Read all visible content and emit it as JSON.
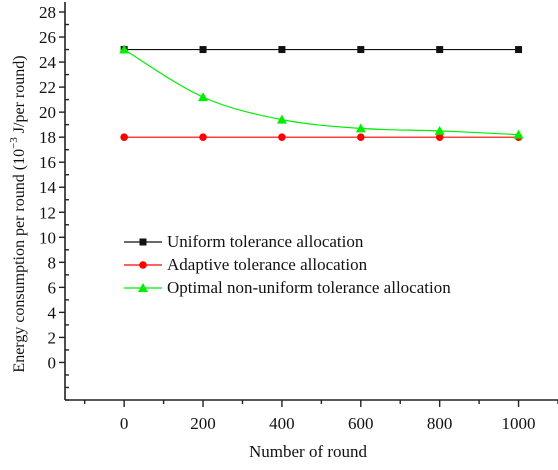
{
  "chart_data": {
    "type": "line",
    "xlabel": "Number of round",
    "ylabel": "Energy consumption per round (10",
    "ylabel_sup": "−3",
    "ylabel_tail": " J/per round)",
    "x": [
      0,
      200,
      400,
      600,
      800,
      1000
    ],
    "xlim": [
      -150,
      1100
    ],
    "ylim": [
      -3,
      28.8
    ],
    "x_ticks": [
      0,
      200,
      400,
      600,
      800,
      1000
    ],
    "y_ticks": [
      0,
      2,
      4,
      6,
      8,
      10,
      12,
      14,
      16,
      18,
      20,
      22,
      24,
      26,
      28
    ],
    "grid": false,
    "legend_position": "left-center",
    "series": [
      {
        "name": "Uniform tolerance allocation",
        "values": [
          25.0,
          25.0,
          25.0,
          25.0,
          25.0,
          25.0
        ],
        "color": "#111111",
        "marker": "square"
      },
      {
        "name": "Adaptive tolerance allocation",
        "values": [
          18.0,
          18.0,
          18.0,
          18.0,
          18.0,
          18.0
        ],
        "color": "#ff0000",
        "marker": "circle"
      },
      {
        "name": "Optimal non-uniform tolerance allocation",
        "values": [
          25.0,
          21.2,
          19.4,
          18.7,
          18.5,
          18.2
        ],
        "color": "#00ee00",
        "marker": "triangle"
      }
    ]
  }
}
